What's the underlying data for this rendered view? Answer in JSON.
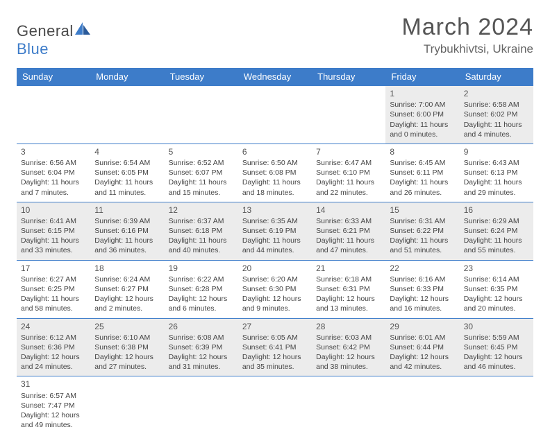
{
  "brand": {
    "name1": "General",
    "name2": "Blue",
    "color1": "#4a4a4a",
    "color2": "#3d7cc9"
  },
  "title": "March 2024",
  "location": "Trybukhivtsi, Ukraine",
  "colors": {
    "header_bg": "#3d7cc9",
    "header_fg": "#ffffff",
    "row_border": "#3d7cc9",
    "shade": "#ececec",
    "text": "#444444"
  },
  "fonts": {
    "title_size": 34,
    "location_size": 17,
    "th_size": 13,
    "cell_size": 10.5
  },
  "weekdays": [
    "Sunday",
    "Monday",
    "Tuesday",
    "Wednesday",
    "Thursday",
    "Friday",
    "Saturday"
  ],
  "weeks": [
    [
      null,
      null,
      null,
      null,
      null,
      {
        "n": "1",
        "sr": "7:00 AM",
        "ss": "6:00 PM",
        "dl": "11 hours and 0 minutes."
      },
      {
        "n": "2",
        "sr": "6:58 AM",
        "ss": "6:02 PM",
        "dl": "11 hours and 4 minutes."
      }
    ],
    [
      {
        "n": "3",
        "sr": "6:56 AM",
        "ss": "6:04 PM",
        "dl": "11 hours and 7 minutes."
      },
      {
        "n": "4",
        "sr": "6:54 AM",
        "ss": "6:05 PM",
        "dl": "11 hours and 11 minutes."
      },
      {
        "n": "5",
        "sr": "6:52 AM",
        "ss": "6:07 PM",
        "dl": "11 hours and 15 minutes."
      },
      {
        "n": "6",
        "sr": "6:50 AM",
        "ss": "6:08 PM",
        "dl": "11 hours and 18 minutes."
      },
      {
        "n": "7",
        "sr": "6:47 AM",
        "ss": "6:10 PM",
        "dl": "11 hours and 22 minutes."
      },
      {
        "n": "8",
        "sr": "6:45 AM",
        "ss": "6:11 PM",
        "dl": "11 hours and 26 minutes."
      },
      {
        "n": "9",
        "sr": "6:43 AM",
        "ss": "6:13 PM",
        "dl": "11 hours and 29 minutes."
      }
    ],
    [
      {
        "n": "10",
        "sr": "6:41 AM",
        "ss": "6:15 PM",
        "dl": "11 hours and 33 minutes."
      },
      {
        "n": "11",
        "sr": "6:39 AM",
        "ss": "6:16 PM",
        "dl": "11 hours and 36 minutes."
      },
      {
        "n": "12",
        "sr": "6:37 AM",
        "ss": "6:18 PM",
        "dl": "11 hours and 40 minutes."
      },
      {
        "n": "13",
        "sr": "6:35 AM",
        "ss": "6:19 PM",
        "dl": "11 hours and 44 minutes."
      },
      {
        "n": "14",
        "sr": "6:33 AM",
        "ss": "6:21 PM",
        "dl": "11 hours and 47 minutes."
      },
      {
        "n": "15",
        "sr": "6:31 AM",
        "ss": "6:22 PM",
        "dl": "11 hours and 51 minutes."
      },
      {
        "n": "16",
        "sr": "6:29 AM",
        "ss": "6:24 PM",
        "dl": "11 hours and 55 minutes."
      }
    ],
    [
      {
        "n": "17",
        "sr": "6:27 AM",
        "ss": "6:25 PM",
        "dl": "11 hours and 58 minutes."
      },
      {
        "n": "18",
        "sr": "6:24 AM",
        "ss": "6:27 PM",
        "dl": "12 hours and 2 minutes."
      },
      {
        "n": "19",
        "sr": "6:22 AM",
        "ss": "6:28 PM",
        "dl": "12 hours and 6 minutes."
      },
      {
        "n": "20",
        "sr": "6:20 AM",
        "ss": "6:30 PM",
        "dl": "12 hours and 9 minutes."
      },
      {
        "n": "21",
        "sr": "6:18 AM",
        "ss": "6:31 PM",
        "dl": "12 hours and 13 minutes."
      },
      {
        "n": "22",
        "sr": "6:16 AM",
        "ss": "6:33 PM",
        "dl": "12 hours and 16 minutes."
      },
      {
        "n": "23",
        "sr": "6:14 AM",
        "ss": "6:35 PM",
        "dl": "12 hours and 20 minutes."
      }
    ],
    [
      {
        "n": "24",
        "sr": "6:12 AM",
        "ss": "6:36 PM",
        "dl": "12 hours and 24 minutes."
      },
      {
        "n": "25",
        "sr": "6:10 AM",
        "ss": "6:38 PM",
        "dl": "12 hours and 27 minutes."
      },
      {
        "n": "26",
        "sr": "6:08 AM",
        "ss": "6:39 PM",
        "dl": "12 hours and 31 minutes."
      },
      {
        "n": "27",
        "sr": "6:05 AM",
        "ss": "6:41 PM",
        "dl": "12 hours and 35 minutes."
      },
      {
        "n": "28",
        "sr": "6:03 AM",
        "ss": "6:42 PM",
        "dl": "12 hours and 38 minutes."
      },
      {
        "n": "29",
        "sr": "6:01 AM",
        "ss": "6:44 PM",
        "dl": "12 hours and 42 minutes."
      },
      {
        "n": "30",
        "sr": "5:59 AM",
        "ss": "6:45 PM",
        "dl": "12 hours and 46 minutes."
      }
    ],
    [
      {
        "n": "31",
        "sr": "6:57 AM",
        "ss": "7:47 PM",
        "dl": "12 hours and 49 minutes."
      },
      null,
      null,
      null,
      null,
      null,
      null
    ]
  ],
  "labels": {
    "sunrise": "Sunrise:",
    "sunset": "Sunset:",
    "daylight": "Daylight:"
  }
}
